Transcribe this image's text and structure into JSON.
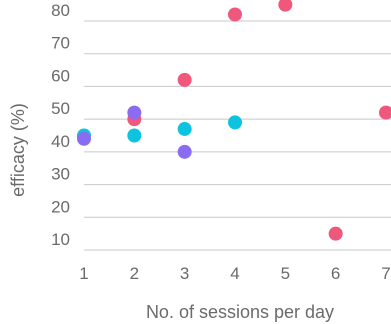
{
  "chart_data": {
    "type": "scatter",
    "title": "",
    "xlabel": "No. of sessions per day",
    "ylabel": "efficacy (%)",
    "xlim": [
      1,
      7
    ],
    "ylim": [
      10,
      80
    ],
    "x_ticks": [
      "1",
      "2",
      "3",
      "4",
      "5",
      "6",
      "7"
    ],
    "y_ticks": [
      "10",
      "20",
      "30",
      "40",
      "50",
      "60",
      "70",
      "80"
    ],
    "grid": "horizontal",
    "legend": "none",
    "series": [
      {
        "color": "#f0577c",
        "points": [
          {
            "x": 2,
            "y": 50
          },
          {
            "x": 3,
            "y": 62
          },
          {
            "x": 4,
            "y": 82
          },
          {
            "x": 5,
            "y": 85
          },
          {
            "x": 6,
            "y": 15
          },
          {
            "x": 7,
            "y": 52
          }
        ]
      },
      {
        "color": "#0ec3df",
        "points": [
          {
            "x": 1,
            "y": 45
          },
          {
            "x": 2,
            "y": 45
          },
          {
            "x": 3,
            "y": 47
          },
          {
            "x": 4,
            "y": 49
          }
        ]
      },
      {
        "color": "#8b6cf0",
        "points": [
          {
            "x": 1,
            "y": 44
          },
          {
            "x": 2,
            "y": 52
          },
          {
            "x": 3,
            "y": 40
          }
        ]
      }
    ]
  }
}
